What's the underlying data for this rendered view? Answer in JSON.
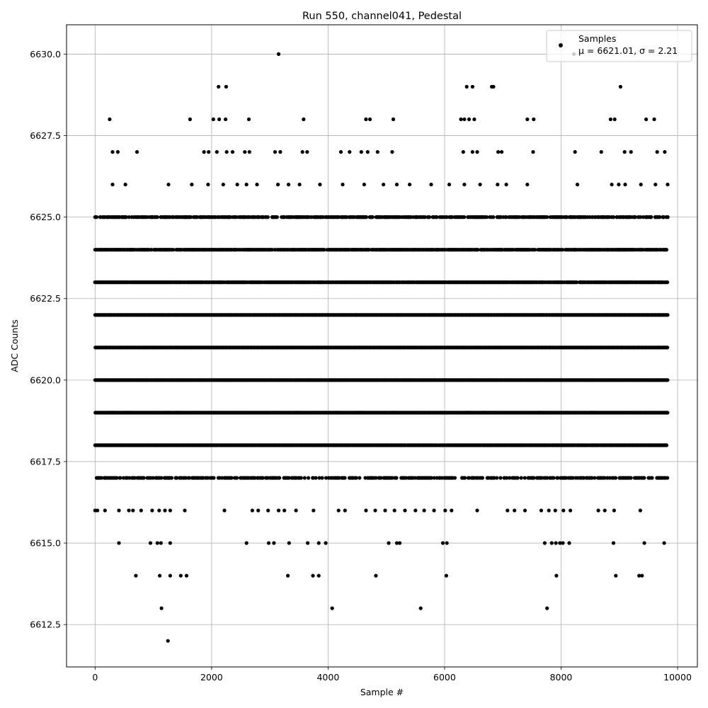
{
  "chart_data": {
    "type": "scatter",
    "title": "Run 550, channel041, Pedestal",
    "xlabel": "Sample #",
    "ylabel": "ADC Counts",
    "xlim": [
      -490,
      10340
    ],
    "ylim": [
      6611.2,
      6630.9
    ],
    "xticks": [
      0,
      2000,
      4000,
      6000,
      8000,
      10000
    ],
    "xtick_labels": [
      "0",
      "2000",
      "4000",
      "6000",
      "8000",
      "10000"
    ],
    "yticks": [
      6612.5,
      6615.0,
      6617.5,
      6620.0,
      6622.5,
      6625.0,
      6627.5,
      6630.0
    ],
    "ytick_labels": [
      "6612.5",
      "6615.0",
      "6617.5",
      "6620.0",
      "6622.5",
      "6625.0",
      "6627.5",
      "6630.0"
    ],
    "grid": true,
    "marker_color": "#000000",
    "legend": {
      "placement": "top-right",
      "entries": [
        {
          "label": "Samples",
          "stats": "μ = 6621.01, σ = 2.21"
        }
      ]
    },
    "sample_range": [
      0,
      9830
    ],
    "series": [
      {
        "name": "Samples",
        "dense_levels": [
          6617,
          6618,
          6619,
          6620,
          6621,
          6622,
          6623,
          6624,
          6625
        ],
        "sparse_points": [
          [
            3150,
            6630
          ],
          [
            8220,
            6630
          ],
          [
            2120,
            6629
          ],
          [
            2250,
            6629
          ],
          [
            6380,
            6629
          ],
          [
            6480,
            6629
          ],
          [
            6810,
            6629
          ],
          [
            6840,
            6629
          ],
          [
            9020,
            6629
          ],
          [
            250,
            6628
          ],
          [
            1630,
            6628
          ],
          [
            2030,
            6628
          ],
          [
            2130,
            6628
          ],
          [
            2240,
            6628
          ],
          [
            2640,
            6628
          ],
          [
            3580,
            6628
          ],
          [
            4650,
            6628
          ],
          [
            4720,
            6628
          ],
          [
            5120,
            6628
          ],
          [
            6280,
            6628
          ],
          [
            6340,
            6628
          ],
          [
            6420,
            6628
          ],
          [
            6510,
            6628
          ],
          [
            7420,
            6628
          ],
          [
            7530,
            6628
          ],
          [
            8850,
            6628
          ],
          [
            8920,
            6628
          ],
          [
            9460,
            6628
          ],
          [
            9600,
            6628
          ],
          [
            300,
            6627
          ],
          [
            390,
            6627
          ],
          [
            720,
            6627
          ],
          [
            1870,
            6627
          ],
          [
            1950,
            6627
          ],
          [
            2090,
            6627
          ],
          [
            2260,
            6627
          ],
          [
            2360,
            6627
          ],
          [
            2570,
            6627
          ],
          [
            2650,
            6627
          ],
          [
            3090,
            6627
          ],
          [
            3180,
            6627
          ],
          [
            3560,
            6627
          ],
          [
            3640,
            6627
          ],
          [
            4220,
            6627
          ],
          [
            4370,
            6627
          ],
          [
            4570,
            6627
          ],
          [
            4680,
            6627
          ],
          [
            4850,
            6627
          ],
          [
            5100,
            6627
          ],
          [
            6320,
            6627
          ],
          [
            6480,
            6627
          ],
          [
            6560,
            6627
          ],
          [
            6920,
            6627
          ],
          [
            6980,
            6627
          ],
          [
            7520,
            6627
          ],
          [
            8240,
            6627
          ],
          [
            8690,
            6627
          ],
          [
            9090,
            6627
          ],
          [
            9200,
            6627
          ],
          [
            9650,
            6627
          ],
          [
            9780,
            6627
          ],
          [
            300,
            6626
          ],
          [
            520,
            6626
          ],
          [
            1260,
            6626
          ],
          [
            1660,
            6626
          ],
          [
            1940,
            6626
          ],
          [
            2200,
            6626
          ],
          [
            2440,
            6626
          ],
          [
            2600,
            6626
          ],
          [
            2780,
            6626
          ],
          [
            3140,
            6626
          ],
          [
            3320,
            6626
          ],
          [
            3510,
            6626
          ],
          [
            3860,
            6626
          ],
          [
            4250,
            6626
          ],
          [
            4620,
            6626
          ],
          [
            4950,
            6626
          ],
          [
            5180,
            6626
          ],
          [
            5400,
            6626
          ],
          [
            5770,
            6626
          ],
          [
            6080,
            6626
          ],
          [
            6340,
            6626
          ],
          [
            6610,
            6626
          ],
          [
            6910,
            6626
          ],
          [
            7060,
            6626
          ],
          [
            7420,
            6626
          ],
          [
            8280,
            6626
          ],
          [
            8870,
            6626
          ],
          [
            8990,
            6626
          ],
          [
            9100,
            6626
          ],
          [
            9370,
            6626
          ],
          [
            9620,
            6626
          ],
          [
            9830,
            6626
          ],
          [
            0,
            6616
          ],
          [
            40,
            6616
          ],
          [
            170,
            6616
          ],
          [
            410,
            6616
          ],
          [
            580,
            6616
          ],
          [
            650,
            6616
          ],
          [
            790,
            6616
          ],
          [
            980,
            6616
          ],
          [
            1100,
            6616
          ],
          [
            1200,
            6616
          ],
          [
            1290,
            6616
          ],
          [
            1540,
            6616
          ],
          [
            2220,
            6616
          ],
          [
            2700,
            6616
          ],
          [
            2800,
            6616
          ],
          [
            2970,
            6616
          ],
          [
            3150,
            6616
          ],
          [
            3250,
            6616
          ],
          [
            3450,
            6616
          ],
          [
            3750,
            6616
          ],
          [
            4180,
            6616
          ],
          [
            4290,
            6616
          ],
          [
            4650,
            6616
          ],
          [
            4810,
            6616
          ],
          [
            4980,
            6616
          ],
          [
            5140,
            6616
          ],
          [
            5320,
            6616
          ],
          [
            5500,
            6616
          ],
          [
            5650,
            6616
          ],
          [
            5820,
            6616
          ],
          [
            6010,
            6616
          ],
          [
            6120,
            6616
          ],
          [
            6560,
            6616
          ],
          [
            7080,
            6616
          ],
          [
            7200,
            6616
          ],
          [
            7380,
            6616
          ],
          [
            7660,
            6616
          ],
          [
            7790,
            6616
          ],
          [
            7900,
            6616
          ],
          [
            8040,
            6616
          ],
          [
            8160,
            6616
          ],
          [
            8640,
            6616
          ],
          [
            8750,
            6616
          ],
          [
            8910,
            6616
          ],
          [
            9360,
            6616
          ],
          [
            410,
            6615
          ],
          [
            950,
            6615
          ],
          [
            1070,
            6615
          ],
          [
            1130,
            6615
          ],
          [
            1290,
            6615
          ],
          [
            2600,
            6615
          ],
          [
            2980,
            6615
          ],
          [
            3070,
            6615
          ],
          [
            3330,
            6615
          ],
          [
            3650,
            6615
          ],
          [
            3840,
            6615
          ],
          [
            3960,
            6615
          ],
          [
            5040,
            6615
          ],
          [
            5180,
            6615
          ],
          [
            5230,
            6615
          ],
          [
            5970,
            6615
          ],
          [
            6040,
            6615
          ],
          [
            7720,
            6615
          ],
          [
            7840,
            6615
          ],
          [
            7910,
            6615
          ],
          [
            7980,
            6615
          ],
          [
            8030,
            6615
          ],
          [
            8140,
            6615
          ],
          [
            8900,
            6615
          ],
          [
            9430,
            6615
          ],
          [
            9770,
            6615
          ],
          [
            700,
            6614
          ],
          [
            1110,
            6614
          ],
          [
            1290,
            6614
          ],
          [
            1470,
            6614
          ],
          [
            1570,
            6614
          ],
          [
            3310,
            6614
          ],
          [
            3740,
            6614
          ],
          [
            3840,
            6614
          ],
          [
            4820,
            6614
          ],
          [
            6030,
            6614
          ],
          [
            7920,
            6614
          ],
          [
            8940,
            6614
          ],
          [
            9340,
            6614
          ],
          [
            9390,
            6614
          ],
          [
            1140,
            6613
          ],
          [
            4070,
            6613
          ],
          [
            5590,
            6613
          ],
          [
            7760,
            6613
          ],
          [
            1250,
            6612
          ]
        ]
      }
    ]
  }
}
